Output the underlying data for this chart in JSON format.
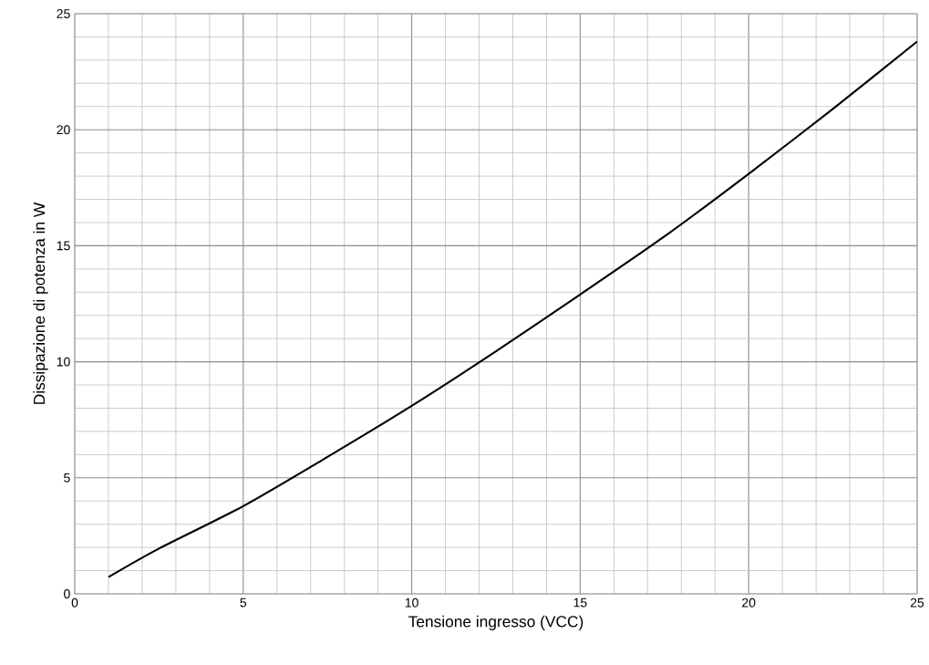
{
  "chart_data": {
    "type": "line",
    "xlabel": "Tensione ingresso (VCC)",
    "ylabel": "Dissipazione di potenza in W",
    "x": [
      1,
      2.5,
      5,
      7.5,
      10,
      12.5,
      15,
      17.5,
      20,
      22.5,
      25
    ],
    "series": [
      {
        "color": "#000000",
        "values": [
          0.72,
          1.95,
          3.78,
          5.9,
          8.1,
          10.45,
          12.9,
          15.4,
          18.1,
          20.9,
          23.8
        ]
      }
    ],
    "xlim": [
      0,
      25
    ],
    "ylim": [
      0,
      25
    ],
    "xticks": [
      0,
      5,
      10,
      15,
      20,
      25
    ],
    "yticks": [
      0,
      5,
      10,
      15,
      20,
      25
    ],
    "grid": true,
    "line_style": "solid",
    "marker": "none"
  }
}
